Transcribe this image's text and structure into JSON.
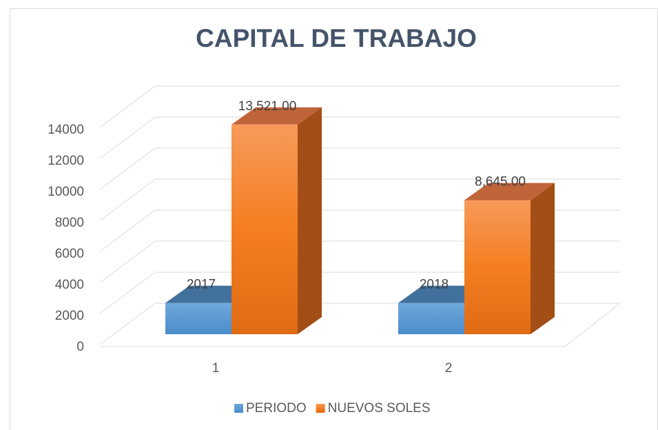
{
  "chart_data": {
    "type": "bar3d",
    "title": "CAPITAL DE TRABAJO",
    "categories": [
      "1",
      "2"
    ],
    "series": [
      {
        "name": "PERIODO",
        "color": "#5b9bd5",
        "values": [
          2017,
          2018
        ]
      },
      {
        "name": "NUEVOS SOLES",
        "color": "#f4801f",
        "values": [
          13521,
          8645
        ],
        "value_labels": [
          "13,521.00",
          "8,645.00"
        ]
      }
    ],
    "ylim": [
      0,
      14000
    ],
    "yticks": [
      0,
      2000,
      4000,
      6000,
      8000,
      10000,
      12000,
      14000
    ],
    "grid": true,
    "legend": "bottom"
  }
}
